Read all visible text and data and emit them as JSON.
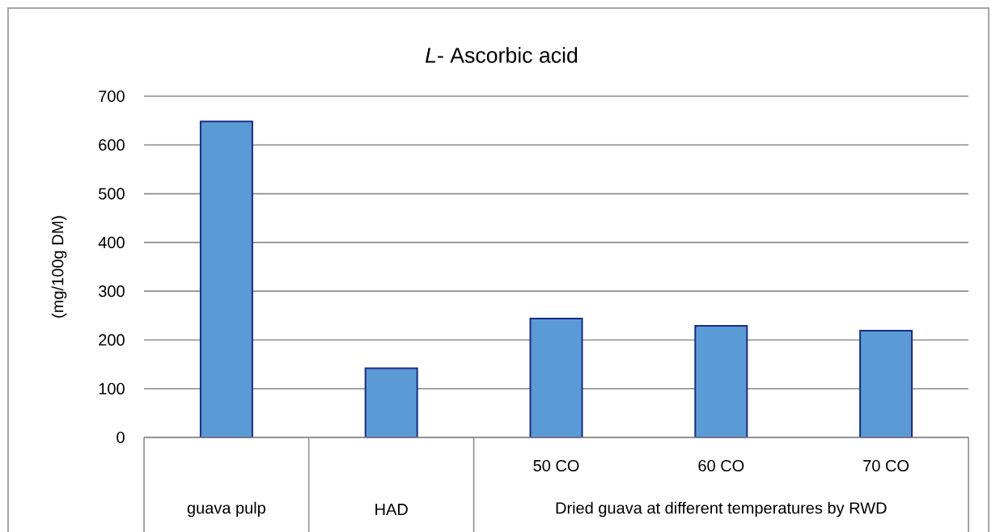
{
  "chart_data": {
    "type": "bar",
    "title": "*L*- Ascorbic acid",
    "ylabel": "(mg/100g DM)",
    "categories": [
      "guava pulp",
      "HAD",
      "50 CO",
      "60 CO",
      "70 CO"
    ],
    "values": [
      648,
      142,
      244,
      229,
      219
    ],
    "color": "#5b9bd5",
    "ylim": [
      0,
      700
    ],
    "yticks": [
      0,
      100,
      200,
      300,
      400,
      500,
      600,
      700
    ],
    "grid": "y",
    "annotations": [
      "Dried guava at different temperatures by RWD"
    ]
  }
}
